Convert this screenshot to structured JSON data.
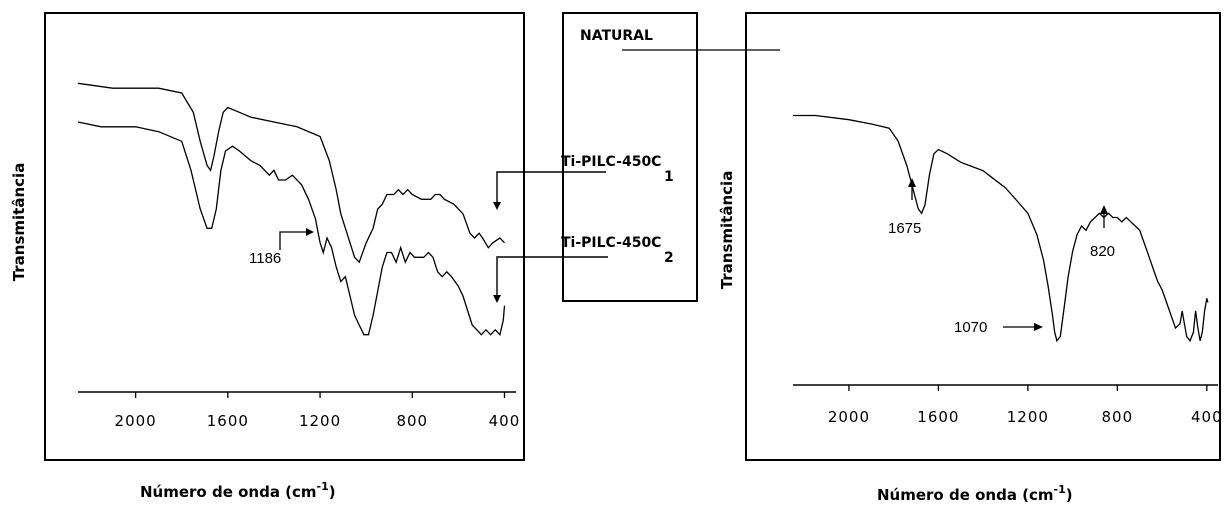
{
  "chart_data": [
    {
      "type": "line",
      "ylabel": "Transmitância",
      "xlabel_main": "Número de onda (cm",
      "xlabel_sup": "-1",
      "xlabel_close": ")",
      "xlim": [
        2250,
        350
      ],
      "xticks": [
        2000,
        1600,
        1200,
        800,
        400
      ],
      "xtick_labels": [
        "2000",
        "1600",
        "1200",
        "800",
        "400"
      ],
      "series": [
        {
          "name": "Ti-PILC-450C 1",
          "points": [
            [
              2250,
              0.96
            ],
            [
              2100,
              0.95
            ],
            [
              1900,
              0.95
            ],
            [
              1800,
              0.94
            ],
            [
              1750,
              0.9
            ],
            [
              1720,
              0.84
            ],
            [
              1690,
              0.79
            ],
            [
              1675,
              0.78
            ],
            [
              1660,
              0.81
            ],
            [
              1640,
              0.86
            ],
            [
              1620,
              0.9
            ],
            [
              1600,
              0.91
            ],
            [
              1550,
              0.9
            ],
            [
              1500,
              0.89
            ],
            [
              1400,
              0.88
            ],
            [
              1300,
              0.87
            ],
            [
              1200,
              0.85
            ],
            [
              1160,
              0.8
            ],
            [
              1130,
              0.74
            ],
            [
              1110,
              0.69
            ],
            [
              1090,
              0.66
            ],
            [
              1070,
              0.63
            ],
            [
              1050,
              0.6
            ],
            [
              1030,
              0.59
            ],
            [
              1000,
              0.63
            ],
            [
              970,
              0.66
            ],
            [
              950,
              0.7
            ],
            [
              930,
              0.71
            ],
            [
              910,
              0.73
            ],
            [
              880,
              0.73
            ],
            [
              860,
              0.74
            ],
            [
              840,
              0.73
            ],
            [
              820,
              0.74
            ],
            [
              800,
              0.73
            ],
            [
              760,
              0.72
            ],
            [
              720,
              0.72
            ],
            [
              700,
              0.73
            ],
            [
              680,
              0.73
            ],
            [
              660,
              0.72
            ],
            [
              620,
              0.71
            ],
            [
              580,
              0.69
            ],
            [
              550,
              0.65
            ],
            [
              530,
              0.64
            ],
            [
              510,
              0.65
            ],
            [
              495,
              0.64
            ],
            [
              470,
              0.62
            ],
            [
              450,
              0.63
            ],
            [
              420,
              0.64
            ],
            [
              400,
              0.63
            ]
          ]
        },
        {
          "name": "Ti-PILC-450C 2",
          "points": [
            [
              2250,
              0.88
            ],
            [
              2150,
              0.87
            ],
            [
              2000,
              0.87
            ],
            [
              1900,
              0.86
            ],
            [
              1800,
              0.84
            ],
            [
              1760,
              0.78
            ],
            [
              1720,
              0.7
            ],
            [
              1690,
              0.66
            ],
            [
              1670,
              0.66
            ],
            [
              1650,
              0.7
            ],
            [
              1630,
              0.78
            ],
            [
              1610,
              0.82
            ],
            [
              1580,
              0.83
            ],
            [
              1550,
              0.82
            ],
            [
              1500,
              0.8
            ],
            [
              1460,
              0.79
            ],
            [
              1420,
              0.77
            ],
            [
              1400,
              0.78
            ],
            [
              1380,
              0.76
            ],
            [
              1350,
              0.76
            ],
            [
              1320,
              0.77
            ],
            [
              1280,
              0.75
            ],
            [
              1250,
              0.72
            ],
            [
              1220,
              0.68
            ],
            [
              1200,
              0.63
            ],
            [
              1186,
              0.61
            ],
            [
              1170,
              0.64
            ],
            [
              1150,
              0.62
            ],
            [
              1130,
              0.58
            ],
            [
              1110,
              0.55
            ],
            [
              1090,
              0.56
            ],
            [
              1070,
              0.52
            ],
            [
              1050,
              0.48
            ],
            [
              1030,
              0.46
            ],
            [
              1010,
              0.44
            ],
            [
              990,
              0.44
            ],
            [
              970,
              0.48
            ],
            [
              950,
              0.53
            ],
            [
              930,
              0.58
            ],
            [
              910,
              0.61
            ],
            [
              890,
              0.61
            ],
            [
              870,
              0.59
            ],
            [
              850,
              0.62
            ],
            [
              830,
              0.59
            ],
            [
              810,
              0.61
            ],
            [
              790,
              0.6
            ],
            [
              770,
              0.6
            ],
            [
              750,
              0.6
            ],
            [
              730,
              0.61
            ],
            [
              710,
              0.6
            ],
            [
              690,
              0.57
            ],
            [
              670,
              0.56
            ],
            [
              650,
              0.57
            ],
            [
              630,
              0.56
            ],
            [
              600,
              0.54
            ],
            [
              580,
              0.52
            ],
            [
              560,
              0.49
            ],
            [
              540,
              0.46
            ],
            [
              520,
              0.45
            ],
            [
              500,
              0.44
            ],
            [
              480,
              0.45
            ],
            [
              460,
              0.44
            ],
            [
              440,
              0.45
            ],
            [
              420,
              0.44
            ],
            [
              405,
              0.47
            ],
            [
              400,
              0.5
            ]
          ]
        }
      ],
      "annotations": [
        {
          "text": "1186",
          "x": 1186
        }
      ],
      "grid": false
    },
    {
      "type": "line",
      "ylabel": "Transmitância",
      "xlabel_main": "Número de onda (cm",
      "xlabel_sup": "-1",
      "xlabel_close": ")",
      "xlim": [
        2250,
        350
      ],
      "xticks": [
        2000,
        1600,
        1200,
        800,
        400
      ],
      "xtick_labels": [
        "2000",
        "1600",
        "1200",
        "800",
        "400"
      ],
      "series": [
        {
          "name": "NATURAL",
          "points": [
            [
              2250,
              0.94
            ],
            [
              2150,
              0.94
            ],
            [
              2000,
              0.93
            ],
            [
              1900,
              0.92
            ],
            [
              1820,
              0.91
            ],
            [
              1780,
              0.88
            ],
            [
              1740,
              0.82
            ],
            [
              1710,
              0.76
            ],
            [
              1690,
              0.72
            ],
            [
              1675,
              0.71
            ],
            [
              1660,
              0.73
            ],
            [
              1640,
              0.8
            ],
            [
              1620,
              0.85
            ],
            [
              1600,
              0.86
            ],
            [
              1560,
              0.85
            ],
            [
              1500,
              0.83
            ],
            [
              1450,
              0.82
            ],
            [
              1400,
              0.81
            ],
            [
              1350,
              0.79
            ],
            [
              1300,
              0.77
            ],
            [
              1250,
              0.74
            ],
            [
              1200,
              0.71
            ],
            [
              1160,
              0.66
            ],
            [
              1130,
              0.6
            ],
            [
              1110,
              0.54
            ],
            [
              1090,
              0.47
            ],
            [
              1080,
              0.43
            ],
            [
              1070,
              0.41
            ],
            [
              1055,
              0.42
            ],
            [
              1040,
              0.48
            ],
            [
              1020,
              0.56
            ],
            [
              1000,
              0.62
            ],
            [
              980,
              0.66
            ],
            [
              960,
              0.68
            ],
            [
              940,
              0.67
            ],
            [
              920,
              0.69
            ],
            [
              900,
              0.7
            ],
            [
              880,
              0.71
            ],
            [
              860,
              0.7
            ],
            [
              840,
              0.71
            ],
            [
              820,
              0.7
            ],
            [
              800,
              0.7
            ],
            [
              780,
              0.69
            ],
            [
              760,
              0.7
            ],
            [
              740,
              0.69
            ],
            [
              720,
              0.68
            ],
            [
              700,
              0.67
            ],
            [
              680,
              0.64
            ],
            [
              660,
              0.61
            ],
            [
              640,
              0.58
            ],
            [
              620,
              0.55
            ],
            [
              600,
              0.53
            ],
            [
              580,
              0.5
            ],
            [
              560,
              0.47
            ],
            [
              540,
              0.44
            ],
            [
              520,
              0.45
            ],
            [
              510,
              0.48
            ],
            [
              500,
              0.45
            ],
            [
              490,
              0.42
            ],
            [
              475,
              0.41
            ],
            [
              460,
              0.43
            ],
            [
              450,
              0.48
            ],
            [
              440,
              0.44
            ],
            [
              430,
              0.41
            ],
            [
              420,
              0.43
            ],
            [
              410,
              0.48
            ],
            [
              400,
              0.51
            ],
            [
              395,
              0.5
            ]
          ]
        }
      ],
      "annotations": [
        {
          "text": "1675",
          "x": 1675
        },
        {
          "text": "820",
          "x": 820
        },
        {
          "text": "1070",
          "x": 1070
        }
      ],
      "grid": false
    }
  ],
  "legend": {
    "natural": "NATURAL",
    "ti1_main": "Ti-PILC-450C",
    "ti1_num": "1",
    "ti2_main": "Ti-PILC-450C",
    "ti2_num": "2"
  }
}
